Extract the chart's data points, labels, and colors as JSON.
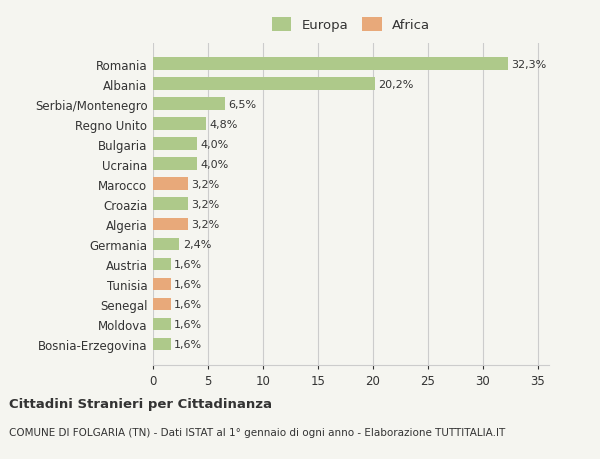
{
  "countries": [
    "Romania",
    "Albania",
    "Serbia/Montenegro",
    "Regno Unito",
    "Bulgaria",
    "Ucraina",
    "Marocco",
    "Croazia",
    "Algeria",
    "Germania",
    "Austria",
    "Tunisia",
    "Senegal",
    "Moldova",
    "Bosnia-Erzegovina"
  ],
  "values": [
    32.3,
    20.2,
    6.5,
    4.8,
    4.0,
    4.0,
    3.2,
    3.2,
    3.2,
    2.4,
    1.6,
    1.6,
    1.6,
    1.6,
    1.6
  ],
  "labels": [
    "32,3%",
    "20,2%",
    "6,5%",
    "4,8%",
    "4,0%",
    "4,0%",
    "3,2%",
    "3,2%",
    "3,2%",
    "2,4%",
    "1,6%",
    "1,6%",
    "1,6%",
    "1,6%",
    "1,6%"
  ],
  "continents": [
    "Europa",
    "Europa",
    "Europa",
    "Europa",
    "Europa",
    "Europa",
    "Africa",
    "Europa",
    "Africa",
    "Europa",
    "Europa",
    "Africa",
    "Africa",
    "Europa",
    "Europa"
  ],
  "europa_color": "#aec98a",
  "africa_color": "#e8a97a",
  "background_color": "#f5f5f0",
  "grid_color": "#cccccc",
  "text_color": "#333333",
  "title": "Cittadini Stranieri per Cittadinanza",
  "subtitle": "COMUNE DI FOLGARIA (TN) - Dati ISTAT al 1° gennaio di ogni anno - Elaborazione TUTTITALIA.IT",
  "xlim": [
    0,
    36
  ],
  "xticks": [
    0,
    5,
    10,
    15,
    20,
    25,
    30,
    35
  ],
  "bar_height": 0.62,
  "figsize": [
    6.0,
    4.6
  ],
  "dpi": 100
}
